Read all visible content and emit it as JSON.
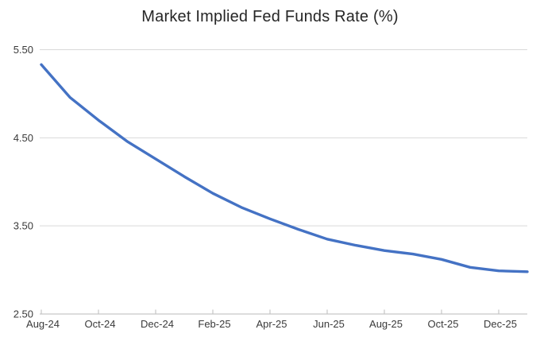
{
  "chart_data": {
    "type": "line",
    "title": "Market Implied Fed Funds Rate (%)",
    "xlabel": "",
    "ylabel": "",
    "x": [
      "Aug-24",
      "Sep-24",
      "Oct-24",
      "Nov-24",
      "Dec-24",
      "Jan-25",
      "Feb-25",
      "Mar-25",
      "Apr-25",
      "May-25",
      "Jun-25",
      "Jul-25",
      "Aug-25",
      "Sep-25",
      "Oct-25",
      "Nov-25",
      "Dec-25",
      "Jan-26"
    ],
    "series": [
      {
        "name": "Market Implied Fed Funds Rate",
        "values": [
          5.33,
          4.96,
          4.7,
          4.46,
          4.26,
          4.06,
          3.87,
          3.71,
          3.58,
          3.46,
          3.35,
          3.28,
          3.22,
          3.18,
          3.12,
          3.03,
          2.99,
          2.98
        ]
      }
    ],
    "x_tick_labels": [
      "Aug-24",
      "Oct-24",
      "Dec-24",
      "Feb-25",
      "Apr-25",
      "Jun-25",
      "Aug-25",
      "Oct-25",
      "Dec-25"
    ],
    "x_tick_every": 2,
    "y_ticks": [
      2.5,
      3.5,
      4.5,
      5.5
    ],
    "y_tick_labels": [
      "2.50",
      "3.50",
      "4.50",
      "5.50"
    ],
    "ylim": [
      2.5,
      5.5
    ],
    "grid": "horizontal",
    "legend": "none",
    "colors": {
      "line": "#4472C4",
      "gridline": "#D9D9D9",
      "axis": "#C6C6C6",
      "tick_label": "#3a3a3a",
      "title": "#262626",
      "background": "#FFFFFF"
    }
  }
}
